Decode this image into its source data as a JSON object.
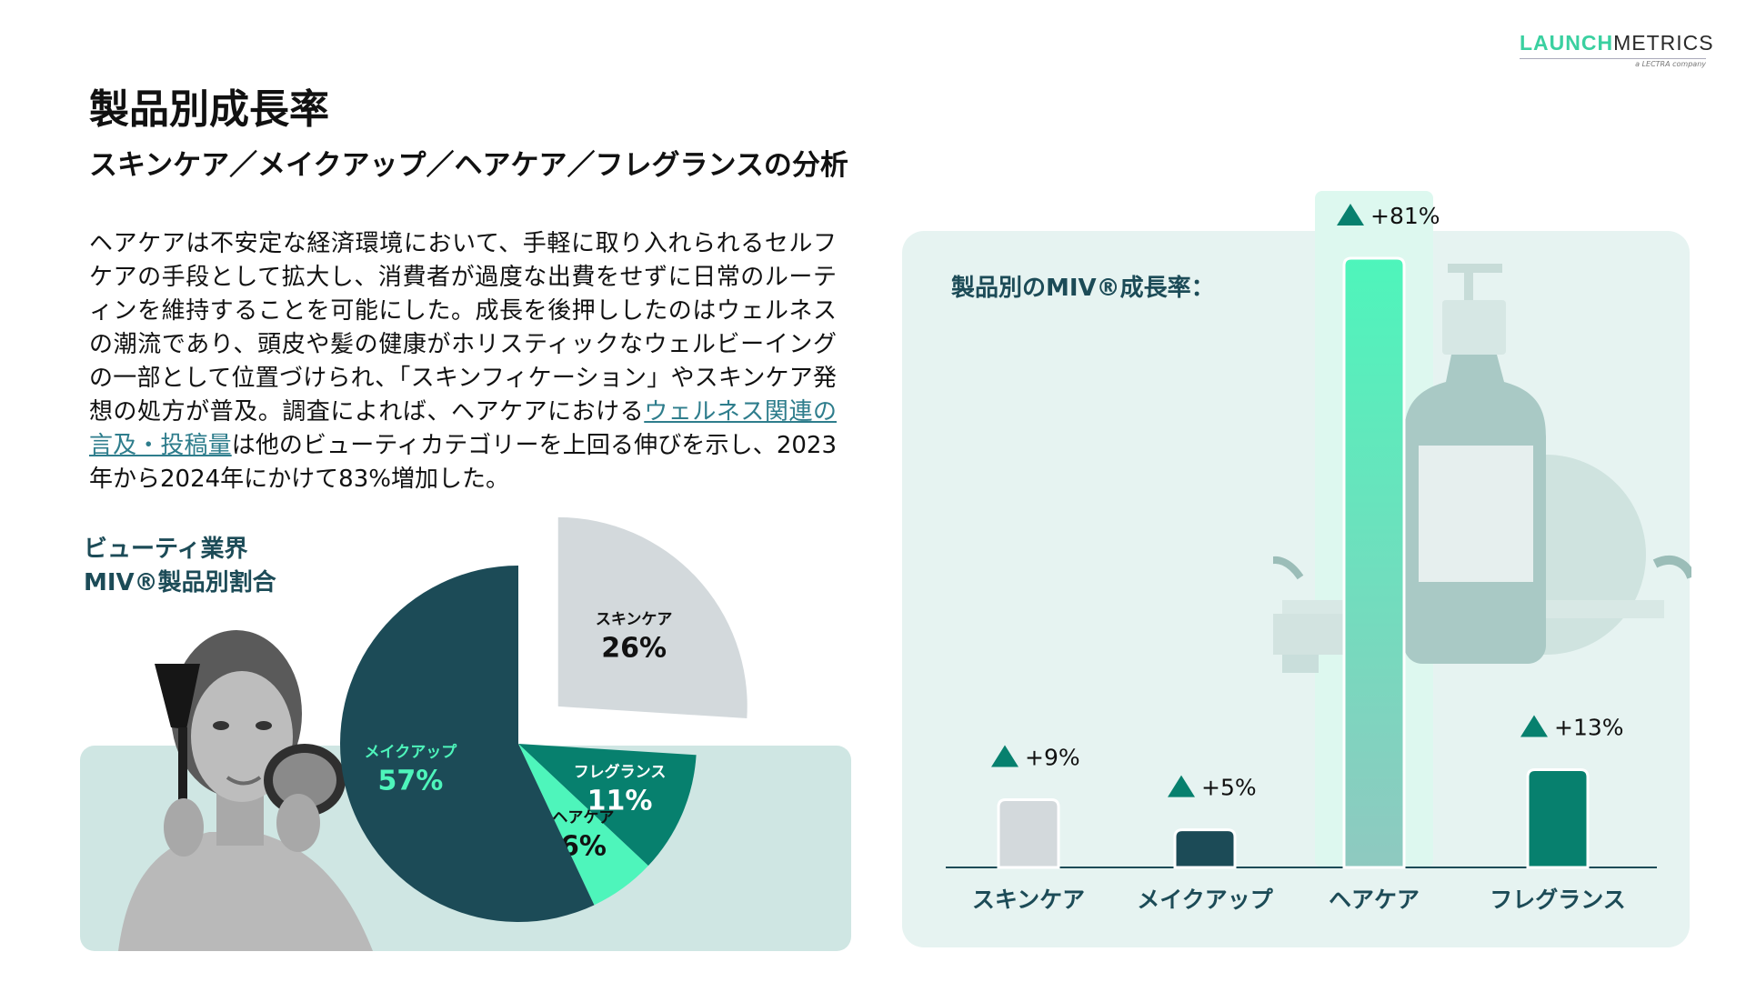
{
  "logo": {
    "part1": "LAUNCH",
    "part2": "METRICS",
    "sub": "a LECTRA company"
  },
  "title": "製品別成長率",
  "subtitle": "スキンケア／メイクアップ／ヘアケア／フレグランスの分析",
  "body": {
    "before": "ヘアケアは不安定な経済環境において、手軽に取り入れられるセルフケアの手段として拡大し、消費者が過度な出費をせずに日常のルーティンを維持することを可能にした。成長を後押ししたのはウェルネスの潮流であり、頭皮や髪の健康がホリスティックなウェルビーイングの一部として位置づけられ、「スキンフィケーション」やスキンケア発想の処方が普及。調査によれば、ヘアケアにおける",
    "link": "ウェルネス関連の言及・投稿量",
    "after": "は他のビューティカテゴリーを上回る伸びを示し、2023年から2024年にかけて83%増加した。"
  },
  "pie_title": {
    "line1": "ビューティ業界",
    "line2": "MIV®製品別割合"
  },
  "bar_title": "製品別のMIV®成長率：",
  "chart_data": [
    {
      "type": "pie",
      "title": "ビューティ業界 MIV®製品別割合",
      "slices": [
        {
          "label": "スキンケア",
          "value": 26,
          "value_label": "26%",
          "color": "#d3d9dc",
          "exploded": true
        },
        {
          "label": "フレグランス",
          "value": 11,
          "value_label": "11%",
          "color": "#07806e"
        },
        {
          "label": "ヘアケア",
          "value": 6,
          "value_label": "6%",
          "color": "#4ef5bb"
        },
        {
          "label": "メイクアップ",
          "value": 57,
          "value_label": "57%",
          "color": "#1c4b57"
        }
      ]
    },
    {
      "type": "bar",
      "title": "製品別のMIV®成長率：",
      "categories": [
        "スキンケア",
        "メイクアップ",
        "ヘアケア",
        "フレグランス"
      ],
      "values": [
        9,
        5,
        81,
        13
      ],
      "value_labels": [
        "+9%",
        "+5%",
        "+81%",
        "+13%"
      ],
      "colors": [
        "#d3d9dc",
        "#1c4b57",
        "#4ef5bb",
        "#07806e"
      ],
      "highlight_category": "ヘアケア",
      "grid": false
    }
  ]
}
